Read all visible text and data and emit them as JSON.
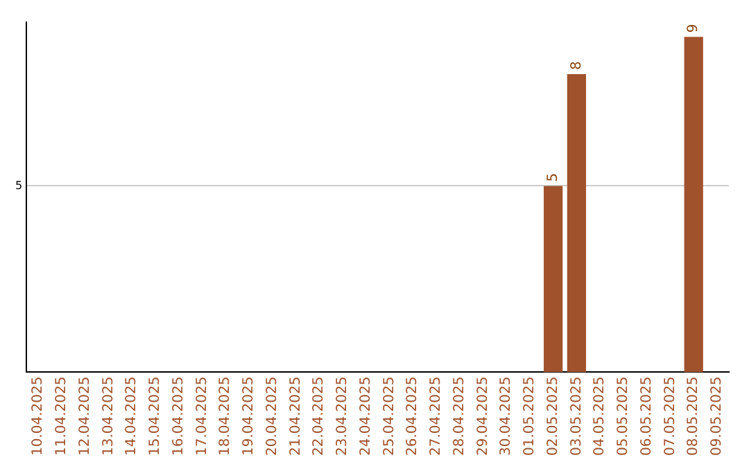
{
  "chart_data": {
    "type": "bar",
    "categories": [
      "10.04.2025",
      "11.04.2025",
      "12.04.2025",
      "13.04.2025",
      "14.04.2025",
      "15.04.2025",
      "16.04.2025",
      "17.04.2025",
      "18.04.2025",
      "19.04.2025",
      "20.04.2025",
      "21.04.2025",
      "22.04.2025",
      "23.04.2025",
      "24.04.2025",
      "25.04.2025",
      "26.04.2025",
      "27.04.2025",
      "28.04.2025",
      "29.04.2025",
      "30.04.2025",
      "01.05.2025",
      "02.05.2025",
      "03.05.2025",
      "04.05.2025",
      "05.05.2025",
      "06.05.2025",
      "07.05.2025",
      "08.05.2025",
      "09.05.2025"
    ],
    "values": [
      null,
      null,
      null,
      null,
      null,
      null,
      null,
      null,
      null,
      null,
      null,
      null,
      null,
      null,
      null,
      null,
      null,
      null,
      null,
      null,
      null,
      null,
      5,
      8,
      null,
      null,
      null,
      null,
      9,
      null
    ],
    "color": "#a0522d",
    "ylim": [
      0,
      9.4
    ],
    "yticks": [
      5
    ],
    "grid": "y",
    "data_labels": true,
    "legend": false
  }
}
